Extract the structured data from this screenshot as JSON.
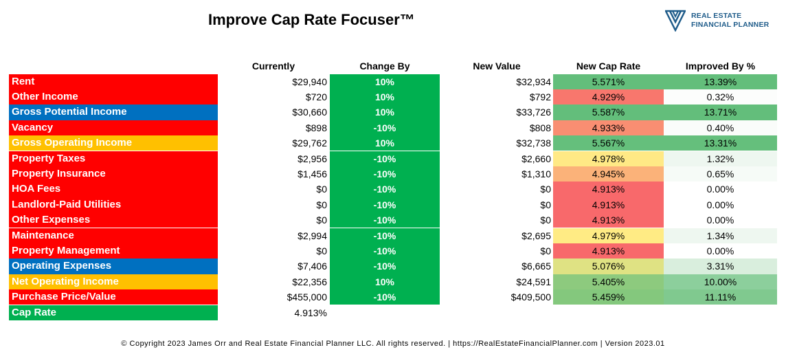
{
  "title": "Improve Cap Rate Focuser™",
  "logo": {
    "line1": "REAL ESTATE",
    "line2": "FINANCIAL PLANNER",
    "icon": "chevron-logo-icon"
  },
  "headers": {
    "currently": "Currently",
    "change_by": "Change By",
    "new_value": "New Value",
    "new_cap_rate": "New Cap Rate",
    "improved_by": "Improved By %"
  },
  "colors": {
    "red": "#ff0000",
    "blue": "#0070c0",
    "gold": "#ffc000",
    "green": "#00b050"
  },
  "rows": [
    {
      "label": "Rent",
      "label_color": "#ff0000",
      "currently": "$29,940",
      "change_by": "10%",
      "new_value": "$32,934",
      "new_cap_rate": "5.571%",
      "ncr_color": "#63be7b",
      "improved_by": "13.39%",
      "imp_color": "#63be7b"
    },
    {
      "label": "Other Income",
      "label_color": "#ff0000",
      "currently": "$720",
      "change_by": "10%",
      "new_value": "$792",
      "new_cap_rate": "4.929%",
      "ncr_color": "#f8776d",
      "improved_by": "0.32%",
      "imp_color": "#fcfdfc"
    },
    {
      "label": "Gross Potential Income",
      "label_color": "#0070c0",
      "currently": "$30,660",
      "change_by": "10%",
      "new_value": "$33,726",
      "new_cap_rate": "5.587%",
      "ncr_color": "#63be7b",
      "improved_by": "13.71%",
      "imp_color": "#63be7b"
    },
    {
      "label": "Vacancy",
      "label_color": "#ff0000",
      "currently": "$898",
      "change_by": "-10%",
      "new_value": "$808",
      "new_cap_rate": "4.933%",
      "ncr_color": "#f98e72",
      "improved_by": "0.40%",
      "imp_color": "#fafcfa"
    },
    {
      "label": "Gross Operating Income",
      "label_color": "#ffc000",
      "currently": "$29,762",
      "change_by": "10%",
      "new_value": "$32,738",
      "new_cap_rate": "5.567%",
      "ncr_color": "#65bf7c",
      "improved_by": "13.31%",
      "imp_color": "#65bf7c"
    },
    {
      "label": "Property Taxes",
      "label_color": "#ff0000",
      "currently": "$2,956",
      "change_by": "-10%",
      "new_value": "$2,660",
      "new_cap_rate": "4.978%",
      "ncr_color": "#ffe985",
      "improved_by": "1.32%",
      "imp_color": "#eef7f0"
    },
    {
      "label": "Property Insurance",
      "label_color": "#ff0000",
      "currently": "$1,456",
      "change_by": "-10%",
      "new_value": "$1,310",
      "new_cap_rate": "4.945%",
      "ncr_color": "#fbb279",
      "improved_by": "0.65%",
      "imp_color": "#f6fbf7"
    },
    {
      "label": "HOA Fees",
      "label_color": "#ff0000",
      "currently": "$0",
      "change_by": "-10%",
      "new_value": "$0",
      "new_cap_rate": "4.913%",
      "ncr_color": "#f8696b",
      "improved_by": "0.00%",
      "imp_color": "#ffffff"
    },
    {
      "label": "Landlord-Paid Utilities",
      "label_color": "#ff0000",
      "currently": "$0",
      "change_by": "-10%",
      "new_value": "$0",
      "new_cap_rate": "4.913%",
      "ncr_color": "#f8696b",
      "improved_by": "0.00%",
      "imp_color": "#ffffff"
    },
    {
      "label": "Other Expenses",
      "label_color": "#ff0000",
      "currently": "$0",
      "change_by": "-10%",
      "new_value": "$0",
      "new_cap_rate": "4.913%",
      "ncr_color": "#f8696b",
      "improved_by": "0.00%",
      "imp_color": "#ffffff"
    },
    {
      "label": "Maintenance",
      "label_color": "#ff0000",
      "currently": "$2,994",
      "change_by": "-10%",
      "new_value": "$2,695",
      "new_cap_rate": "4.979%",
      "ncr_color": "#ffeb84",
      "improved_by": "1.34%",
      "imp_color": "#eef7f0"
    },
    {
      "label": "Property Management",
      "label_color": "#ff0000",
      "currently": "$0",
      "change_by": "-10%",
      "new_value": "$0",
      "new_cap_rate": "4.913%",
      "ncr_color": "#f8696b",
      "improved_by": "0.00%",
      "imp_color": "#ffffff"
    },
    {
      "label": "Operating Expenses",
      "label_color": "#0070c0",
      "currently": "$7,406",
      "change_by": "-10%",
      "new_value": "$6,665",
      "new_cap_rate": "5.076%",
      "ncr_color": "#dfe283",
      "improved_by": "3.31%",
      "imp_color": "#d9eedd"
    },
    {
      "label": "Net Operating Income",
      "label_color": "#ffc000",
      "currently": "$22,356",
      "change_by": "10%",
      "new_value": "$24,591",
      "new_cap_rate": "5.405%",
      "ncr_color": "#8dca7e",
      "improved_by": "10.00%",
      "imp_color": "#8ccf9c"
    },
    {
      "label": "Purchase Price/Value",
      "label_color": "#ff0000",
      "currently": "$455,000",
      "change_by": "-10%",
      "new_value": "$409,500",
      "new_cap_rate": "5.459%",
      "ncr_color": "#84c87d",
      "improved_by": "11.11%",
      "imp_color": "#80c98f"
    },
    {
      "label": "Cap Rate",
      "label_color": "#00b050",
      "currently": "4.913%"
    }
  ],
  "footer": "© Copyright 2023 James Orr and Real Estate Financial Planner LLC. All rights reserved. | https://RealEstateFinancialPlanner.com | Version 2023.01"
}
